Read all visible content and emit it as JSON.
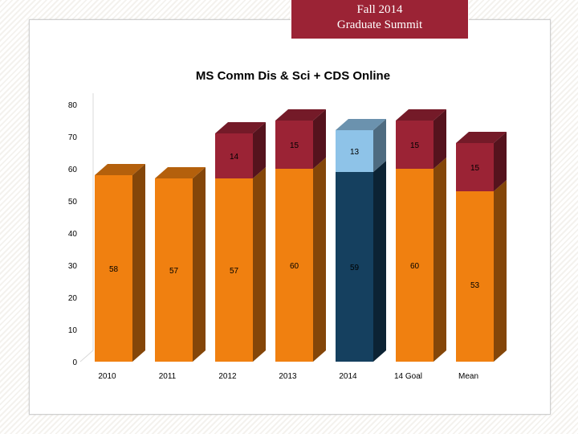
{
  "banner": {
    "line1": "Fall 2014",
    "line2": "Graduate Summit"
  },
  "colors": {
    "orange": "#f08010",
    "maroon": "#9b2335",
    "navy": "#15405f",
    "light_blue": "#8ec3e8"
  },
  "chart_data": {
    "type": "bar",
    "stacked": true,
    "title": "MS Comm Dis & Sci + CDS Online",
    "xlabel": "",
    "ylabel": "",
    "ylim": [
      0,
      80
    ],
    "yticks": [
      0,
      10,
      20,
      30,
      40,
      50,
      60,
      70,
      80
    ],
    "grid": false,
    "legend": "none",
    "categories": [
      "2010",
      "2011",
      "2012",
      "2013",
      "2014",
      "14 Goal",
      "Mean"
    ],
    "series": [
      {
        "values": [
          58,
          57,
          57,
          60,
          59,
          60,
          53
        ]
      },
      {
        "values": [
          null,
          null,
          14,
          15,
          13,
          15,
          15
        ]
      }
    ]
  }
}
